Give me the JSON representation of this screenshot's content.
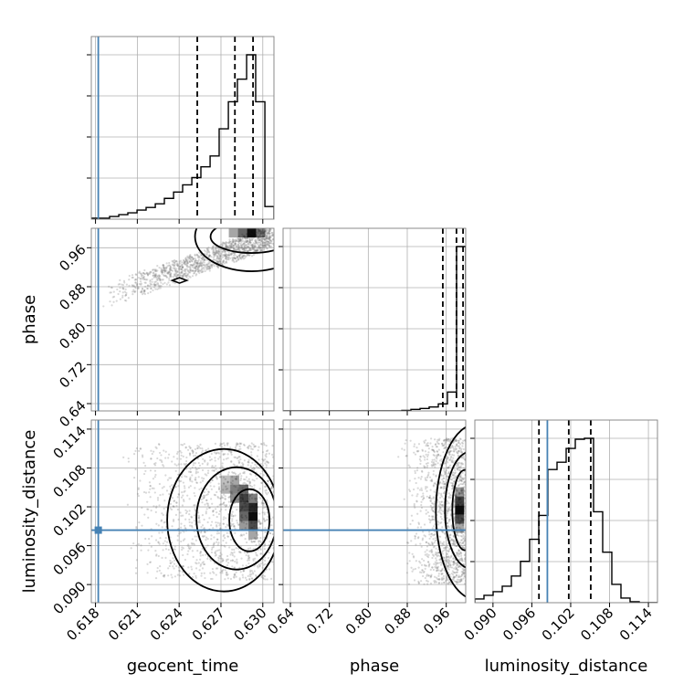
{
  "chart_data": {
    "type": "corner",
    "parameters": [
      "geocent_time",
      "phase",
      "luminosity_distance"
    ],
    "truth_color": "#4682b4",
    "truths": {
      "geocent_time": 0.6182,
      "phase": null,
      "luminosity_distance": 0.0984
    },
    "axes": {
      "geocent_time": {
        "range": [
          0.6177,
          0.6308
        ],
        "ticks": [
          0.618,
          0.621,
          0.624,
          0.627,
          0.63
        ],
        "tick_labels": [
          "0.618",
          "0.621",
          "0.624",
          "0.627",
          "0.630"
        ]
      },
      "phase": {
        "range": [
          0.625,
          1.0
        ],
        "ticks": [
          0.64,
          0.72,
          0.8,
          0.88,
          0.96
        ],
        "tick_labels": [
          "0.64",
          "0.72",
          "0.80",
          "0.88",
          "0.96"
        ]
      },
      "luminosity_distance": {
        "range": [
          0.0872,
          0.1154
        ],
        "ticks": [
          0.09,
          0.096,
          0.102,
          0.108,
          0.114
        ],
        "tick_labels": [
          "0.090",
          "0.096",
          "0.102",
          "0.108",
          "0.114"
        ]
      }
    },
    "axis_labels": {
      "geocent_time": "geocent_time",
      "phase": "phase",
      "luminosity_distance": "luminosity_distance"
    },
    "histograms": {
      "geocent_time": {
        "bins": [
          0.6177,
          0.61836,
          0.61901,
          0.61967,
          0.62032,
          0.62098,
          0.62163,
          0.62229,
          0.62294,
          0.6236,
          0.62425,
          0.62491,
          0.62556,
          0.62622,
          0.62687,
          0.62753,
          0.62818,
          0.62884,
          0.62949,
          0.63015,
          0.6308
        ],
        "counts": [
          1,
          1,
          3,
          5,
          7,
          10,
          13,
          17,
          23,
          30,
          38,
          46,
          58,
          70,
          100,
          130,
          155,
          182,
          130,
          14
        ]
      },
      "phase": {
        "bins": [
          0.625,
          0.64375,
          0.6625,
          0.68125,
          0.7,
          0.71875,
          0.7375,
          0.75625,
          0.775,
          0.79375,
          0.8125,
          0.83125,
          0.85,
          0.86875,
          0.8875,
          0.90625,
          0.925,
          0.94375,
          0.9625,
          0.98125,
          1.0
        ],
        "counts": [
          0,
          0,
          0,
          0,
          0,
          0,
          0,
          0,
          0,
          0,
          0,
          0,
          0,
          1,
          3,
          5,
          8,
          14,
          38,
          330
        ]
      },
      "luminosity_distance": {
        "bins": [
          0.0872,
          0.08861,
          0.09002,
          0.09143,
          0.09284,
          0.09425,
          0.09566,
          0.09707,
          0.09848,
          0.09989,
          0.1013,
          0.10271,
          0.10412,
          0.10553,
          0.10694,
          0.10835,
          0.10976,
          0.11117,
          0.11258,
          0.11399,
          0.1154
        ],
        "counts": [
          4,
          8,
          12,
          18,
          29,
          45,
          69,
          95,
          145,
          153,
          168,
          178,
          179,
          99,
          55,
          20,
          5,
          1,
          0,
          0
        ]
      }
    },
    "quantiles": {
      "geocent_time": [
        0.6253,
        0.628,
        0.6293
      ],
      "phase": [
        0.953,
        0.981,
        0.9945
      ],
      "luminosity_distance": [
        0.0971,
        0.1017,
        0.1051
      ]
    },
    "density_peaks": {
      "geocent_time_vs_phase": {
        "x": 0.6292,
        "y": 0.983
      },
      "geocent_time_vs_luminosity_distance": {
        "x": 0.6293,
        "y": 0.1005
      },
      "phase_vs_luminosity_distance": {
        "x": 0.995,
        "y": 0.1015
      }
    },
    "grid": true,
    "legend": "none"
  }
}
